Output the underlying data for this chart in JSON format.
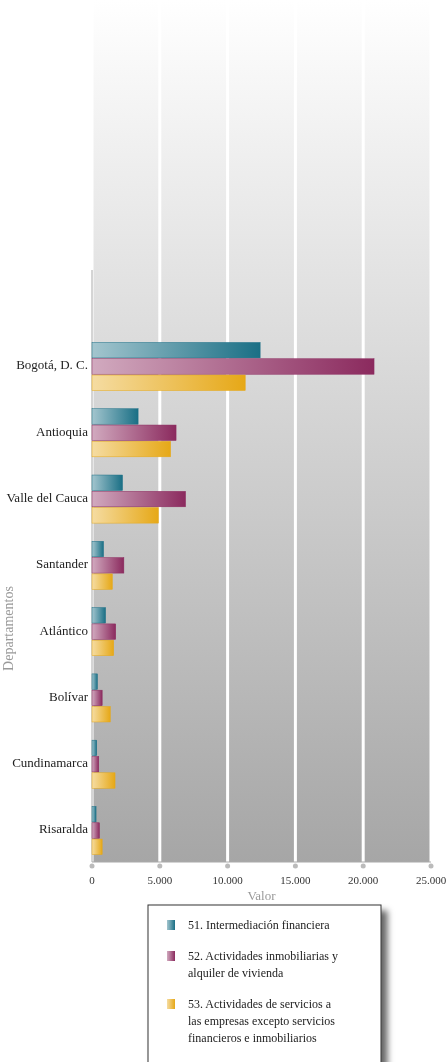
{
  "chart_data": {
    "type": "bar",
    "orientation": "horizontal",
    "xlabel": "Valor",
    "ylabel": "Departamentos",
    "categories": [
      "Bogotá, D. C.",
      "Antioquia",
      "Valle del Cauca",
      "Santander",
      "Atlántico",
      "Bolívar",
      "Cundinamarca",
      "Risaralda"
    ],
    "series": [
      {
        "name": "51. Intermediación financiera",
        "color": "#1a6f85",
        "values": [
          12400,
          3400,
          2250,
          850,
          1000,
          400,
          350,
          300
        ]
      },
      {
        "name": "52. Actividades inmobiliarias y alquiler de vivienda",
        "color": "#8b2a5e",
        "values": [
          20800,
          6200,
          6900,
          2350,
          1750,
          750,
          500,
          550
        ]
      },
      {
        "name": "53. Actividades de servicios a las empresas excepto servicios financieros e inmobiliarios",
        "color": "#e6a817",
        "values": [
          11300,
          5800,
          4900,
          1500,
          1600,
          1350,
          1700,
          750
        ]
      }
    ],
    "xlim": [
      0,
      25000
    ],
    "xticks": [
      {
        "value": 0,
        "label": "0"
      },
      {
        "value": 5000,
        "label": "5.000"
      },
      {
        "value": 10000,
        "label": "10.000"
      },
      {
        "value": 15000,
        "label": "15.000"
      },
      {
        "value": 20000,
        "label": "20.000"
      },
      {
        "value": 25000,
        "label": "25.000"
      }
    ],
    "grid": "x",
    "legend": "bottom"
  }
}
